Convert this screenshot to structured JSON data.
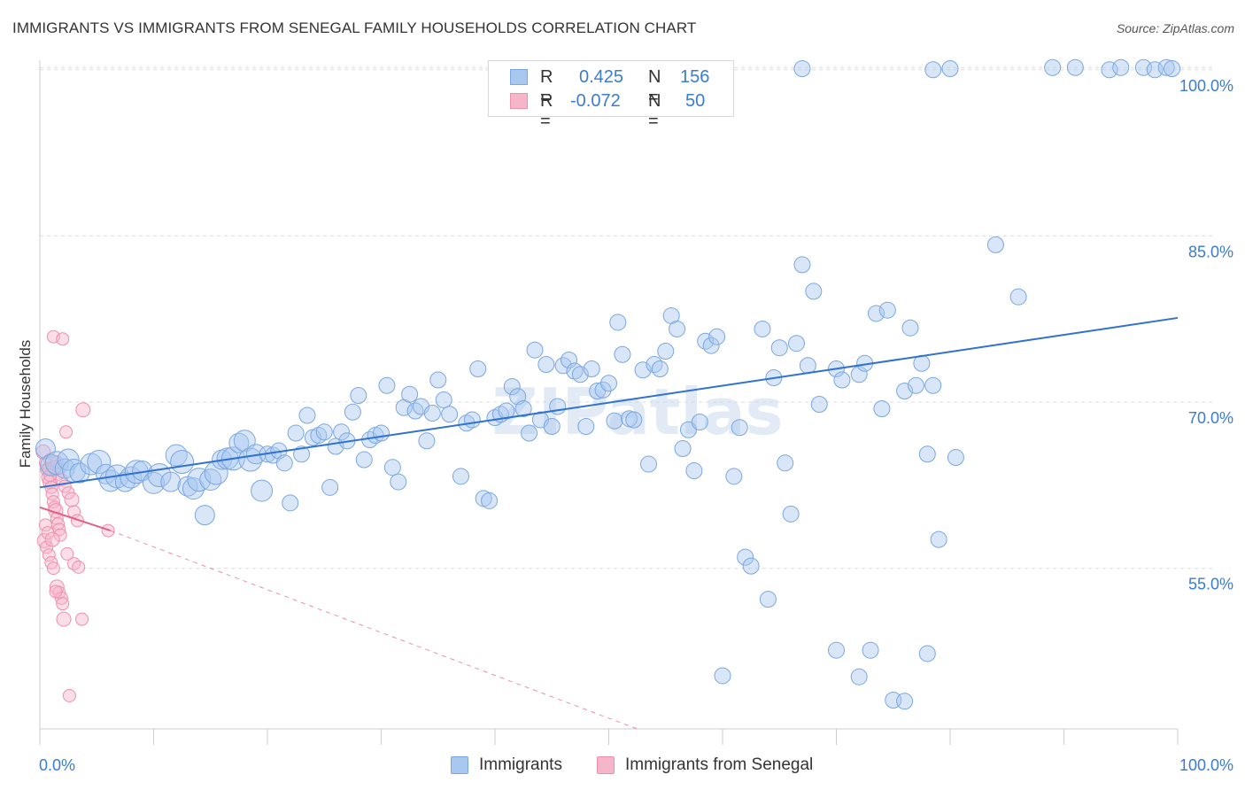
{
  "header": {
    "title": "IMMIGRANTS VS IMMIGRANTS FROM SENEGAL FAMILY HOUSEHOLDS CORRELATION CHART",
    "source": "Source: ZipAtlas.com"
  },
  "legend": {
    "rows": [
      {
        "r_label": "R =",
        "r_value": "0.425",
        "n_label": "N =",
        "n_value": "156"
      },
      {
        "r_label": "R =",
        "r_value": "-0.072",
        "n_label": "N =",
        "n_value": "50"
      }
    ]
  },
  "bottom_legend": {
    "series1": "Immigrants",
    "series2": "Immigrants from Senegal"
  },
  "colors": {
    "blue_fill": "#a9c8f0",
    "blue_stroke": "#7aa7e0",
    "blue_line": "#2f72d0",
    "pink_fill": "#f6b6ca",
    "pink_stroke": "#ee8fae",
    "pink_line": "#e0608a",
    "axis_text": "#3a7bd5"
  },
  "chart_data": {
    "type": "scatter",
    "ylabel": "Family Households",
    "xlabel": "",
    "x_tick_labels": [
      "0.0%",
      "100.0%"
    ],
    "y_tick_labels": [
      "55.0%",
      "70.0%",
      "85.0%",
      "100.0%"
    ],
    "y_ticks": [
      55,
      70,
      85,
      100
    ],
    "xlim": [
      0,
      100
    ],
    "ylim": [
      40.5,
      101.5
    ],
    "watermark": "ZIPatlas",
    "series": [
      {
        "name": "Immigrants",
        "trend": {
          "x0": 0,
          "y0": 62.3,
          "x1": 100,
          "y1": 77.6
        },
        "points": [
          [
            0.5,
            65.8
          ],
          [
            1.0,
            64.3
          ],
          [
            1.5,
            64.5
          ],
          [
            2.2,
            64.0
          ],
          [
            2.5,
            64.8
          ],
          [
            3.0,
            63.8
          ],
          [
            3.5,
            63.6
          ],
          [
            4.5,
            64.4
          ],
          [
            5.2,
            64.6
          ],
          [
            5.8,
            63.5
          ],
          [
            6.2,
            62.9
          ],
          [
            6.8,
            63.3
          ],
          [
            7.5,
            62.8
          ],
          [
            8.0,
            63.2
          ],
          [
            8.5,
            63.7
          ],
          [
            9.0,
            63.8
          ],
          [
            10.0,
            62.7
          ],
          [
            10.5,
            63.4
          ],
          [
            11.5,
            62.8
          ],
          [
            12.0,
            65.2
          ],
          [
            12.5,
            64.6
          ],
          [
            13.0,
            62.4
          ],
          [
            13.5,
            62.2
          ],
          [
            14.0,
            63.0
          ],
          [
            14.5,
            59.8
          ],
          [
            15.0,
            63.0
          ],
          [
            15.5,
            63.6
          ],
          [
            16.0,
            64.8
          ],
          [
            16.5,
            64.9
          ],
          [
            17.0,
            64.9
          ],
          [
            17.5,
            66.3
          ],
          [
            18.0,
            66.5
          ],
          [
            18.5,
            64.8
          ],
          [
            19.0,
            65.3
          ],
          [
            19.5,
            62.0
          ],
          [
            20.0,
            65.3
          ],
          [
            20.5,
            65.2
          ],
          [
            21.0,
            65.6
          ],
          [
            21.5,
            64.5
          ],
          [
            22.0,
            60.9
          ],
          [
            22.5,
            67.2
          ],
          [
            23.0,
            65.3
          ],
          [
            23.5,
            68.8
          ],
          [
            24.0,
            66.8
          ],
          [
            24.5,
            67.0
          ],
          [
            25.0,
            67.3
          ],
          [
            25.5,
            62.3
          ],
          [
            26.0,
            66.0
          ],
          [
            26.5,
            67.3
          ],
          [
            27.0,
            66.5
          ],
          [
            27.5,
            69.1
          ],
          [
            28.0,
            70.6
          ],
          [
            28.5,
            64.8
          ],
          [
            29.0,
            66.6
          ],
          [
            29.5,
            67.0
          ],
          [
            30.0,
            67.2
          ],
          [
            30.5,
            71.5
          ],
          [
            31.0,
            64.1
          ],
          [
            31.5,
            62.8
          ],
          [
            32.0,
            69.5
          ],
          [
            32.5,
            70.7
          ],
          [
            33.0,
            69.2
          ],
          [
            33.5,
            69.6
          ],
          [
            34.0,
            66.5
          ],
          [
            34.5,
            69.0
          ],
          [
            35.0,
            72.0
          ],
          [
            35.5,
            70.2
          ],
          [
            36.0,
            68.9
          ],
          [
            37.0,
            63.3
          ],
          [
            37.5,
            68.1
          ],
          [
            38.0,
            68.4
          ],
          [
            38.5,
            73.0
          ],
          [
            39.0,
            61.3
          ],
          [
            39.5,
            61.1
          ],
          [
            40.0,
            68.6
          ],
          [
            40.5,
            68.9
          ],
          [
            41.0,
            69.2
          ],
          [
            41.5,
            71.4
          ],
          [
            42.0,
            70.5
          ],
          [
            42.5,
            69.4
          ],
          [
            43.0,
            67.2
          ],
          [
            43.5,
            74.7
          ],
          [
            44.0,
            68.4
          ],
          [
            44.5,
            73.4
          ],
          [
            45.0,
            67.8
          ],
          [
            45.5,
            69.6
          ],
          [
            46.0,
            73.3
          ],
          [
            46.5,
            73.8
          ],
          [
            47.0,
            72.8
          ],
          [
            47.5,
            72.5
          ],
          [
            48.0,
            67.8
          ],
          [
            48.5,
            73.0
          ],
          [
            49.0,
            71.0
          ],
          [
            49.5,
            71.1
          ],
          [
            50.0,
            71.7
          ],
          [
            50.5,
            68.3
          ],
          [
            50.8,
            77.2
          ],
          [
            51.2,
            74.3
          ],
          [
            51.8,
            68.5
          ],
          [
            52.2,
            68.4
          ],
          [
            53.0,
            72.9
          ],
          [
            53.5,
            64.4
          ],
          [
            54.0,
            73.4
          ],
          [
            54.5,
            73.0
          ],
          [
            55.0,
            74.6
          ],
          [
            55.5,
            77.8
          ],
          [
            56.0,
            76.6
          ],
          [
            56.5,
            65.8
          ],
          [
            57.0,
            67.5
          ],
          [
            57.5,
            63.8
          ],
          [
            58.0,
            68.2
          ],
          [
            58.5,
            75.5
          ],
          [
            59.0,
            75.1
          ],
          [
            59.5,
            75.9
          ],
          [
            61.0,
            63.3
          ],
          [
            61.5,
            67.7
          ],
          [
            62.0,
            56.0
          ],
          [
            62.5,
            55.2
          ],
          [
            63.5,
            76.6
          ],
          [
            64.0,
            52.2
          ],
          [
            64.5,
            72.2
          ],
          [
            65.0,
            74.9
          ],
          [
            65.5,
            64.5
          ],
          [
            66.0,
            59.9
          ],
          [
            66.5,
            75.3
          ],
          [
            67.0,
            82.4
          ],
          [
            67.5,
            73.3
          ],
          [
            68.0,
            80.0
          ],
          [
            68.5,
            69.8
          ],
          [
            70.0,
            73.0
          ],
          [
            70.5,
            72.0
          ],
          [
            72.0,
            72.5
          ],
          [
            72.5,
            73.5
          ],
          [
            73.5,
            78.0
          ],
          [
            74.0,
            69.4
          ],
          [
            74.5,
            78.3
          ],
          [
            76.0,
            71.0
          ],
          [
            76.5,
            76.7
          ],
          [
            77.0,
            71.5
          ],
          [
            77.5,
            73.5
          ],
          [
            78.0,
            65.3
          ],
          [
            78.5,
            71.5
          ],
          [
            79.0,
            57.6
          ],
          [
            80.5,
            65.0
          ],
          [
            84.0,
            84.2
          ],
          [
            86.0,
            79.5
          ],
          [
            89.0,
            100.2
          ],
          [
            91.0,
            100.2
          ],
          [
            94.0,
            100.0
          ],
          [
            95.0,
            100.2
          ],
          [
            97.0,
            100.2
          ],
          [
            98.0,
            100.0
          ],
          [
            99.0,
            100.2
          ],
          [
            99.5,
            100.1
          ],
          [
            67.0,
            100.1
          ],
          [
            78.5,
            100.0
          ],
          [
            80.0,
            100.1
          ],
          [
            60.0,
            45.3
          ],
          [
            70.0,
            47.6
          ],
          [
            72.0,
            45.2
          ],
          [
            73.0,
            47.6
          ],
          [
            75.0,
            43.1
          ],
          [
            76.0,
            43.0
          ],
          [
            78.0,
            47.3
          ]
        ]
      },
      {
        "name": "Immigrants from Senegal",
        "trend": {
          "x0": 0,
          "y0": 60.5,
          "x1": 6.2,
          "y1": 58.4
        },
        "trend_ext": {
          "x0": 6.2,
          "y0": 58.4,
          "x1": 52.5,
          "y1": 40.5
        },
        "points": [
          [
            0.3,
            65.5
          ],
          [
            0.5,
            64.5
          ],
          [
            0.6,
            63.9
          ],
          [
            0.7,
            63.2
          ],
          [
            0.8,
            64.0
          ],
          [
            0.9,
            62.8
          ],
          [
            1.0,
            62.3
          ],
          [
            1.1,
            61.7
          ],
          [
            1.2,
            61.0
          ],
          [
            1.3,
            60.5
          ],
          [
            1.4,
            60.2
          ],
          [
            1.5,
            59.5
          ],
          [
            1.6,
            59.0
          ],
          [
            1.7,
            58.5
          ],
          [
            1.8,
            58.0
          ],
          [
            0.4,
            57.5
          ],
          [
            0.6,
            56.9
          ],
          [
            0.8,
            56.2
          ],
          [
            1.0,
            55.5
          ],
          [
            1.2,
            55.0
          ],
          [
            1.5,
            53.3
          ],
          [
            1.7,
            52.8
          ],
          [
            1.9,
            52.3
          ],
          [
            2.0,
            51.8
          ],
          [
            0.9,
            64.8
          ],
          [
            1.3,
            64.1
          ],
          [
            1.6,
            63.5
          ],
          [
            1.9,
            63.0
          ],
          [
            2.2,
            62.4
          ],
          [
            2.5,
            61.8
          ],
          [
            2.8,
            61.2
          ],
          [
            3.0,
            60.1
          ],
          [
            3.3,
            59.3
          ],
          [
            0.5,
            58.9
          ],
          [
            0.7,
            58.2
          ],
          [
            1.1,
            57.6
          ],
          [
            2.4,
            56.3
          ],
          [
            3.0,
            55.4
          ],
          [
            3.4,
            55.1
          ],
          [
            1.4,
            52.9
          ],
          [
            2.1,
            50.4
          ],
          [
            3.7,
            50.4
          ],
          [
            2.6,
            43.5
          ],
          [
            1.2,
            75.9
          ],
          [
            2.0,
            75.7
          ],
          [
            3.8,
            69.3
          ],
          [
            2.3,
            67.3
          ],
          [
            6.0,
            58.4
          ],
          [
            1.5,
            64.6
          ],
          [
            0.9,
            63.4
          ]
        ]
      }
    ]
  }
}
